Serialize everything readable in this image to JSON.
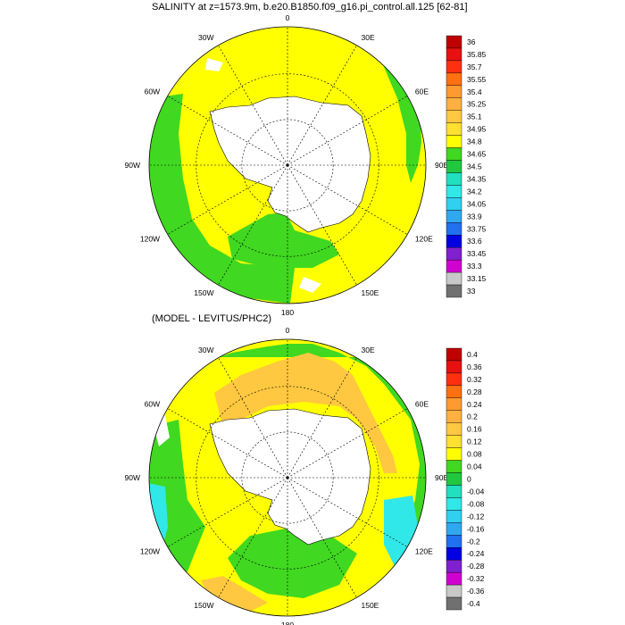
{
  "titles": {
    "top": "SALINITY at z=1573.9m, b.e20.B1850.f09_g16.pi_control.all.125 [62-81]",
    "bottom": "(MODEL - LEVITUS/PHC2)"
  },
  "longitude_labels": [
    "0",
    "30E",
    "60E",
    "90E",
    "120E",
    "150E",
    "180",
    "150W",
    "120W",
    "90W",
    "60W",
    "30W"
  ],
  "colors": {
    "land": "#ffffff",
    "coast": "#000000",
    "grid": "#000000"
  },
  "top_map": {
    "colorbar": {
      "labels": [
        "36",
        "35.85",
        "35.7",
        "35.55",
        "35.4",
        "35.25",
        "35.1",
        "34.95",
        "34.8",
        "34.65",
        "34.5",
        "34.35",
        "34.2",
        "34.05",
        "33.9",
        "33.75",
        "33.6",
        "33.45",
        "33.3",
        "33.15",
        "33"
      ],
      "colors": [
        "#c00000",
        "#e81010",
        "#ff3010",
        "#ff7010",
        "#ff9a30",
        "#ffb040",
        "#ffc840",
        "#ffe030",
        "#ffff00",
        "#40d820",
        "#20c840",
        "#20e0c0",
        "#30e8e8",
        "#30d0f0",
        "#30a8f0",
        "#2070f0",
        "#0000e0",
        "#8020d0",
        "#d000d0",
        "#c8c8c8",
        "#707070"
      ]
    }
  },
  "bottom_map": {
    "colorbar": {
      "labels": [
        "0.4",
        "0.36",
        "0.32",
        "0.28",
        "0.24",
        "0.2",
        "0.16",
        "0.12",
        "0.08",
        "0.04",
        "0",
        "-0.04",
        "-0.08",
        "-0.12",
        "-0.16",
        "-0.2",
        "-0.24",
        "-0.28",
        "-0.32",
        "-0.36",
        "-0.4"
      ],
      "colors": [
        "#c00000",
        "#e81010",
        "#ff3010",
        "#ff7010",
        "#ff9a30",
        "#ffb040",
        "#ffc840",
        "#ffe030",
        "#ffff00",
        "#40d820",
        "#20c840",
        "#20e0c0",
        "#30e8e8",
        "#30d0f0",
        "#30a8f0",
        "#2070f0",
        "#0000e0",
        "#8020d0",
        "#d000d0",
        "#c8c8c8",
        "#707070"
      ]
    }
  }
}
